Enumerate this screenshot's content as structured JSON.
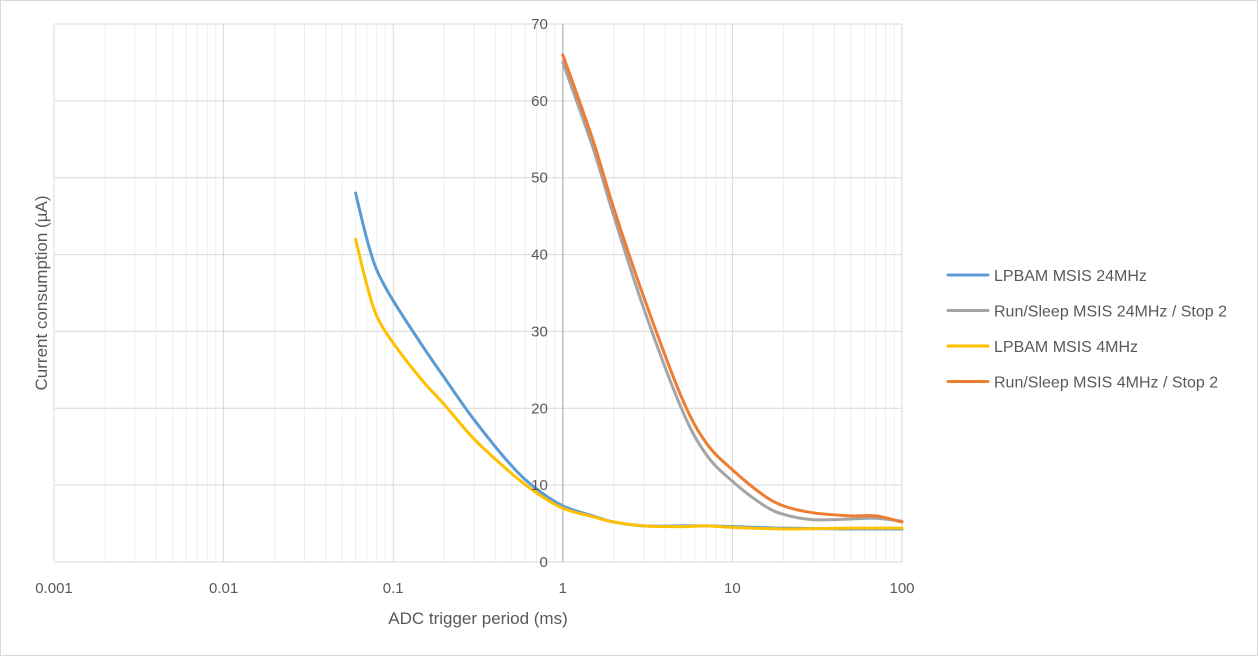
{
  "chart_data": {
    "type": "line",
    "title": "",
    "xlabel": "ADC trigger period (ms)",
    "ylabel": "Current consumption (µA)",
    "x_scale": "log",
    "xlim": [
      0.001,
      100
    ],
    "ylim": [
      0,
      70
    ],
    "x_ticks": [
      0.001,
      0.01,
      0.1,
      1,
      10,
      100
    ],
    "x_tick_labels": [
      "0.001",
      "0.01",
      "0.1",
      "1",
      "10",
      "100"
    ],
    "y_ticks": [
      0,
      10,
      20,
      30,
      40,
      50,
      60,
      70
    ],
    "y_tick_labels": [
      "0",
      "10",
      "20",
      "30",
      "40",
      "50",
      "60",
      "70"
    ],
    "grid": true,
    "legend_position": "right",
    "series": [
      {
        "name": "LPBAM MSIS 24MHz",
        "color": "#5b9bd5",
        "points": [
          [
            0.06,
            48
          ],
          [
            0.07,
            42
          ],
          [
            0.08,
            38
          ],
          [
            0.1,
            34
          ],
          [
            0.15,
            28
          ],
          [
            0.2,
            24
          ],
          [
            0.3,
            18.5
          ],
          [
            0.5,
            12.5
          ],
          [
            0.7,
            9.5
          ],
          [
            1,
            7.3
          ],
          [
            1.5,
            6
          ],
          [
            2,
            5.2
          ],
          [
            3,
            4.7
          ],
          [
            5,
            4.7
          ],
          [
            7,
            4.7
          ],
          [
            10,
            4.6
          ],
          [
            20,
            4.4
          ],
          [
            50,
            4.3
          ],
          [
            100,
            4.3
          ]
        ]
      },
      {
        "name": "Run/Sleep MSIS 24MHz / Stop 2",
        "color": "#a5a5a5",
        "points": [
          [
            1,
            65
          ],
          [
            1.5,
            54
          ],
          [
            2,
            45
          ],
          [
            3,
            33
          ],
          [
            5,
            20
          ],
          [
            7,
            14
          ],
          [
            10,
            10.5
          ],
          [
            15,
            7.5
          ],
          [
            20,
            6.2
          ],
          [
            30,
            5.5
          ],
          [
            50,
            5.6
          ],
          [
            70,
            5.7
          ],
          [
            100,
            5.3
          ]
        ]
      },
      {
        "name": "LPBAM MSIS 4MHz",
        "color": "#ffc000",
        "points": [
          [
            0.06,
            42
          ],
          [
            0.07,
            36
          ],
          [
            0.08,
            32
          ],
          [
            0.1,
            28.5
          ],
          [
            0.15,
            23.5
          ],
          [
            0.2,
            20.5
          ],
          [
            0.3,
            16
          ],
          [
            0.5,
            11.5
          ],
          [
            0.7,
            9
          ],
          [
            1,
            7
          ],
          [
            1.5,
            5.9
          ],
          [
            2,
            5.2
          ],
          [
            3,
            4.7
          ],
          [
            5,
            4.6
          ],
          [
            7,
            4.7
          ],
          [
            10,
            4.5
          ],
          [
            20,
            4.3
          ],
          [
            50,
            4.4
          ],
          [
            100,
            4.4
          ]
        ]
      },
      {
        "name": "Run/Sleep MSIS 4MHz / Stop 2",
        "color": "#ed7d31",
        "points": [
          [
            1,
            66
          ],
          [
            1.5,
            55
          ],
          [
            2,
            46
          ],
          [
            3,
            34.5
          ],
          [
            5,
            21.5
          ],
          [
            7,
            15.5
          ],
          [
            10,
            12
          ],
          [
            15,
            8.8
          ],
          [
            20,
            7.3
          ],
          [
            30,
            6.4
          ],
          [
            50,
            6
          ],
          [
            70,
            6
          ],
          [
            100,
            5.2
          ]
        ]
      }
    ]
  }
}
